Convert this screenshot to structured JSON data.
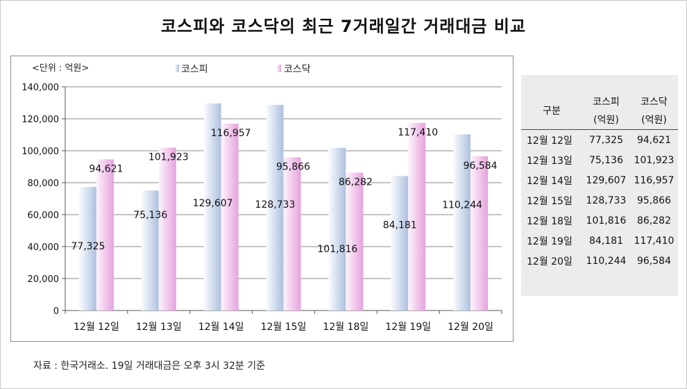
{
  "title": "코스피와 코스닥의 최근 7거래일간 거래대금 비교",
  "chart_data": {
    "type": "bar",
    "unit_label": "<단위 : 억원>",
    "categories": [
      "12월 12일",
      "12월 13일",
      "12월 14일",
      "12월 15일",
      "12월 18일",
      "12월 19일",
      "12월 20일"
    ],
    "series": [
      {
        "name": "코스피",
        "values": [
          77325,
          75136,
          129607,
          128733,
          101816,
          84181,
          110244
        ]
      },
      {
        "name": "코스닥",
        "values": [
          94621,
          101923,
          116957,
          95866,
          86282,
          117410,
          96584
        ]
      }
    ],
    "data_labels": [
      [
        "77,325",
        "75,136",
        "129,607",
        "128,733",
        "101,816",
        "84,181",
        "110,244"
      ],
      [
        "94,621",
        "101,923",
        "116,957",
        "95,866",
        "86,282",
        "117,410",
        "96,584"
      ]
    ],
    "yticks": [
      "0",
      "20,000",
      "40,000",
      "60,000",
      "80,000",
      "100,000",
      "120,000",
      "140,000"
    ],
    "ylim": [
      0,
      140000
    ],
    "grid": true,
    "legend": "top",
    "colors": {
      "kospi_light": "#ffffff",
      "kospi_dark": "#b5c6e0",
      "kosdaq_light": "#ffffff",
      "kosdaq_dark": "#e9a9e0"
    }
  },
  "table": {
    "header": {
      "col0": "구분",
      "col1a": "코스피",
      "col1b": "(억원)",
      "col2a": "코스닥",
      "col2b": "(억원)"
    },
    "rows": [
      [
        "12월 12일",
        "77,325",
        "94,621"
      ],
      [
        "12월 13일",
        "75,136",
        "101,923"
      ],
      [
        "12월 14일",
        "129,607",
        "116,957"
      ],
      [
        "12월 15일",
        "128,733",
        "95,866"
      ],
      [
        "12월 18일",
        "101,816",
        "86,282"
      ],
      [
        "12월 19일",
        "84,181",
        "117,410"
      ],
      [
        "12월 20일",
        "110,244",
        "96,584"
      ]
    ]
  },
  "source": "자료 : 한국거래소. 19일 거래대금은 오후 3시 32분 기준"
}
